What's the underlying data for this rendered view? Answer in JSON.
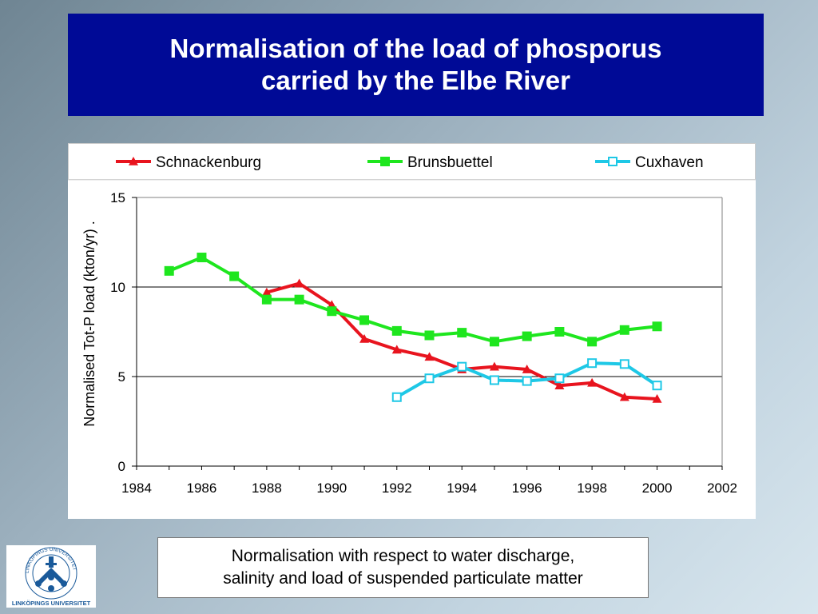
{
  "slide": {
    "title_line1": "Normalisation of the load of phosporus",
    "title_line2": "carried by the Elbe River",
    "note_line1": "Normalisation with respect to water discharge,",
    "note_line2": "salinity and load of suspended particulate matter",
    "logo_text_bottom": "LINKÖPINGS UNIVERSITET",
    "logo_ring_text": "LINKÖPINGS UNIVERSITET",
    "colors": {
      "title_bg": "#000a96",
      "title_fg": "#ffffff"
    }
  },
  "chart_data": {
    "type": "line",
    "title": "",
    "xlabel": "",
    "ylabel": "Normalised Tot-P load (kton/yr) .",
    "xlim": [
      1984,
      2002
    ],
    "ylim": [
      0,
      15
    ],
    "xticks": [
      "1984",
      "1986",
      "1988",
      "1990",
      "1992",
      "1994",
      "1996",
      "1998",
      "2000",
      "2002"
    ],
    "yticks": [
      "0",
      "5",
      "10",
      "15"
    ],
    "grid": "horizontal",
    "legend_position": "top",
    "series": [
      {
        "name": "Schnackenburg",
        "color": "#e8141e",
        "marker": "triangle",
        "x": [
          1988,
          1989,
          1990,
          1991,
          1992,
          1993,
          1994,
          1995,
          1996,
          1997,
          1998,
          1999,
          2000
        ],
        "y": [
          9.7,
          10.2,
          9.0,
          7.1,
          6.5,
          6.1,
          5.4,
          5.55,
          5.4,
          4.5,
          4.65,
          3.85,
          3.75
        ]
      },
      {
        "name": "Brunsbuettel",
        "color": "#1ee61e",
        "marker": "square",
        "x": [
          1985,
          1986,
          1987,
          1988,
          1989,
          1990,
          1991,
          1992,
          1993,
          1994,
          1995,
          1996,
          1997,
          1998,
          1999,
          2000
        ],
        "y": [
          10.9,
          11.65,
          10.6,
          9.3,
          9.3,
          8.65,
          8.15,
          7.55,
          7.3,
          7.45,
          6.95,
          7.25,
          7.5,
          6.95,
          7.6,
          7.8
        ]
      },
      {
        "name": "Cuxhaven",
        "color": "#1ec8e6",
        "marker": "square-open",
        "x": [
          1992,
          1993,
          1994,
          1995,
          1996,
          1997,
          1998,
          1999,
          2000
        ],
        "y": [
          3.85,
          4.9,
          5.55,
          4.8,
          4.75,
          4.9,
          5.75,
          5.7,
          4.5
        ]
      }
    ]
  }
}
